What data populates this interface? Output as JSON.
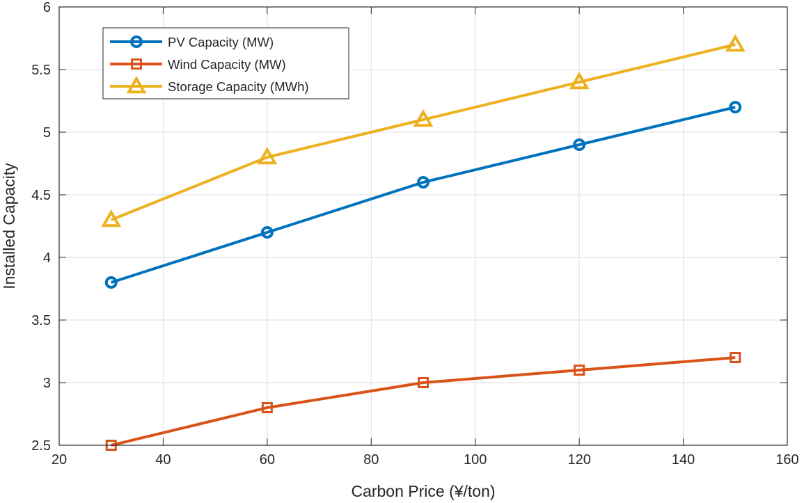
{
  "chart_data": {
    "type": "line",
    "title": "",
    "xlabel": "Carbon Price (¥/ton)",
    "ylabel": "Installed Capacity",
    "xlim": [
      20,
      160
    ],
    "ylim": [
      2.5,
      6
    ],
    "xticks": [
      20,
      40,
      60,
      80,
      100,
      120,
      140,
      160
    ],
    "yticks": [
      2.5,
      3,
      3.5,
      4,
      4.5,
      5,
      5.5,
      6
    ],
    "xtick_labels": [
      "20",
      "40",
      "60",
      "80",
      "100",
      "120",
      "140",
      "160"
    ],
    "ytick_labels": [
      "2.5",
      "3",
      "3.5",
      "4",
      "4.5",
      "5",
      "5.5",
      "6"
    ],
    "grid": true,
    "legend_position": "top-left",
    "x": [
      30,
      60,
      90,
      120,
      150
    ],
    "series": [
      {
        "name": "PV Capacity (MW)",
        "marker": "circle",
        "color": "#0072BD",
        "values": [
          3.8,
          4.2,
          4.6,
          4.9,
          5.2
        ]
      },
      {
        "name": "Wind Capacity (MW)",
        "marker": "square",
        "color": "#D95319",
        "values": [
          2.5,
          2.8,
          3.0,
          3.1,
          3.2
        ]
      },
      {
        "name": "Storage Capacity (MWh)",
        "marker": "triangle",
        "color": "#EDB120",
        "values": [
          4.3,
          4.8,
          5.1,
          5.4,
          5.7
        ]
      }
    ]
  }
}
